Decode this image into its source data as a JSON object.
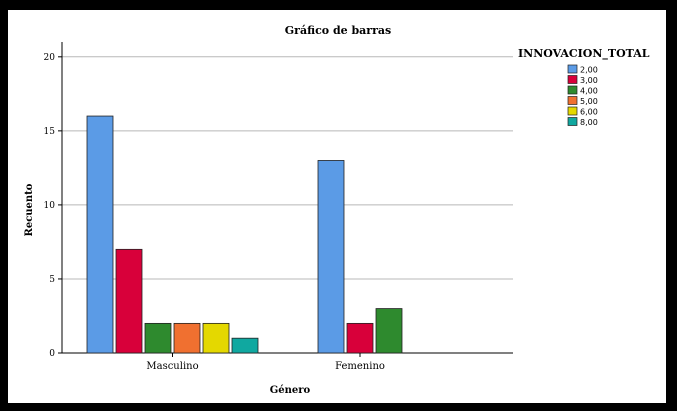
{
  "chart_data": {
    "type": "bar",
    "title": "Gráfico de barras",
    "xlabel": "Género",
    "ylabel": "Recuento",
    "categories": [
      "Masculino",
      "Femenino"
    ],
    "ylim": [
      0,
      21
    ],
    "yticks": [
      0,
      5,
      10,
      15,
      20
    ],
    "grid": true,
    "legend_title": "INNOVACION_TOTAL",
    "legend_position": "top-right",
    "series": [
      {
        "name": "2,00",
        "color": "#5b9be6",
        "values": [
          16,
          13
        ]
      },
      {
        "name": "3,00",
        "color": "#d8003a",
        "values": [
          7,
          2
        ]
      },
      {
        "name": "4,00",
        "color": "#2e8a2e",
        "values": [
          2,
          3
        ]
      },
      {
        "name": "5,00",
        "color": "#f07030",
        "values": [
          2,
          0
        ]
      },
      {
        "name": "6,00",
        "color": "#e4d800",
        "values": [
          2,
          0
        ]
      },
      {
        "name": "8,00",
        "color": "#10a8a0",
        "values": [
          1,
          0
        ]
      }
    ]
  }
}
